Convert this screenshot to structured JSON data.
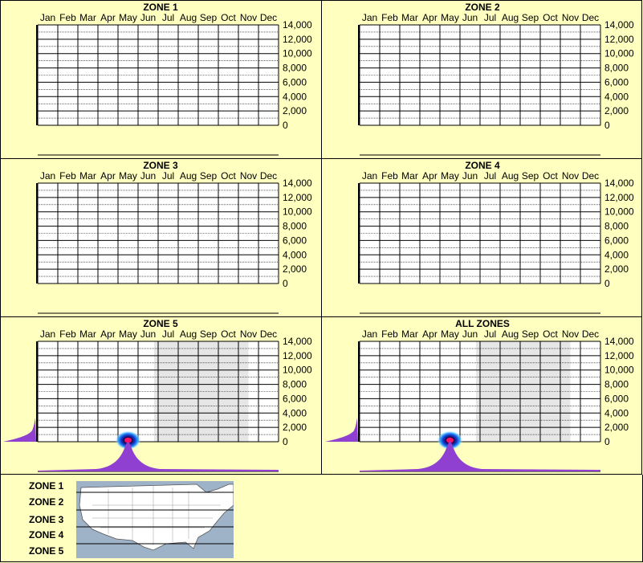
{
  "months": [
    "Jan",
    "Feb",
    "Mar",
    "Apr",
    "May",
    "Jun",
    "Jul",
    "Aug",
    "Sep",
    "Oct",
    "Nov",
    "Dec"
  ],
  "colors": {
    "background": "#ffffc0",
    "spike": "#9040d0",
    "grid": "#000000",
    "shade": "#e6e6e6"
  },
  "chart_data": [
    {
      "type": "heatmap",
      "title": "ZONE 1",
      "ylim": [
        0,
        14000
      ],
      "yticks": [
        "14,000",
        "12,000",
        "10,000",
        "8,000",
        "6,000",
        "4,000",
        "2,000",
        "0"
      ],
      "shaded": false,
      "hotspots": []
    },
    {
      "type": "heatmap",
      "title": "ZONE 2",
      "ylim": [
        0,
        14000
      ],
      "yticks": [
        "14,000",
        "12,000",
        "10,000",
        "8,000",
        "6,000",
        "4,000",
        "2,000",
        "0"
      ],
      "shaded": false,
      "hotspots": []
    },
    {
      "type": "heatmap",
      "title": "ZONE 3",
      "ylim": [
        0,
        14000
      ],
      "yticks": [
        "14,000",
        "12,000",
        "10,000",
        "8,000",
        "6,000",
        "4,000",
        "2,000",
        "0"
      ],
      "shaded": false,
      "hotspots": []
    },
    {
      "type": "heatmap",
      "title": "ZONE 4",
      "ylim": [
        0,
        14000
      ],
      "yticks": [
        "14,000",
        "12,000",
        "10,000",
        "8,000",
        "6,000",
        "4,000",
        "2,000",
        "0"
      ],
      "shaded": false,
      "hotspots": []
    },
    {
      "type": "heatmap",
      "title": "ZONE 5",
      "ylim": [
        0,
        14000
      ],
      "yticks": [
        "14,000",
        "12,000",
        "10,000",
        "8,000",
        "6,000",
        "4,000",
        "2,000",
        "0"
      ],
      "shaded": true,
      "hotspots": [
        {
          "month": 4.0,
          "elevation": 200
        }
      ]
    },
    {
      "type": "heatmap",
      "title": "ALL ZONES",
      "ylim": [
        0,
        14000
      ],
      "yticks": [
        "14,000",
        "12,000",
        "10,000",
        "8,000",
        "6,000",
        "4,000",
        "2,000",
        "0"
      ],
      "shaded": true,
      "hotspots": [
        {
          "month": 4.0,
          "elevation": 200
        }
      ]
    }
  ],
  "legend": {
    "zones": [
      "ZONE 1",
      "ZONE 2",
      "ZONE 3",
      "ZONE 4",
      "ZONE 5"
    ]
  }
}
